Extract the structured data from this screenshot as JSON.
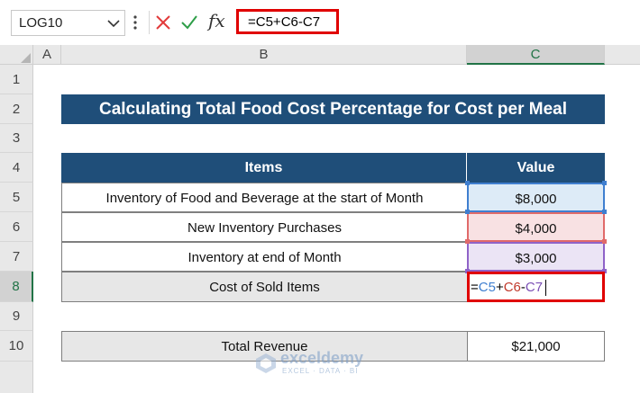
{
  "formula_bar": {
    "name_box": "LOG10",
    "fx_label": "fx",
    "formula": "=C5+C6-C7"
  },
  "column_headers": [
    "A",
    "B",
    "C"
  ],
  "row_headers": [
    "1",
    "2",
    "3",
    "4",
    "5",
    "6",
    "7",
    "8",
    "9",
    "10"
  ],
  "sheet": {
    "title": "Calculating Total Food Cost Percentage for Cost per Meal",
    "table_header": {
      "items": "Items",
      "value": "Value"
    },
    "rows": [
      {
        "item": "Inventory of Food and Beverage at the start of Month",
        "value": "$8,000"
      },
      {
        "item": "New Inventory Purchases",
        "value": "$4,000"
      },
      {
        "item": "Inventory at end of  Month",
        "value": "$3,000"
      },
      {
        "item": "Cost of Sold Items",
        "value": ""
      }
    ],
    "editing": {
      "eq": "=",
      "ref1": "C5",
      "op1": "+",
      "ref2": "C6",
      "op2": "-",
      "ref3": "C7"
    },
    "total": {
      "label": "Total Revenue",
      "value": "$21,000"
    }
  },
  "watermark": {
    "name": "exceldemy",
    "tagline": "EXCEL · DATA · BI"
  },
  "colors": {
    "header_blue": "#1f4e79",
    "ref_c5": "#3f7fd0",
    "ref_c6": "#e06a6a",
    "ref_c7": "#8f63c8",
    "highlight_red": "#e00000",
    "excel_green": "#217346"
  }
}
